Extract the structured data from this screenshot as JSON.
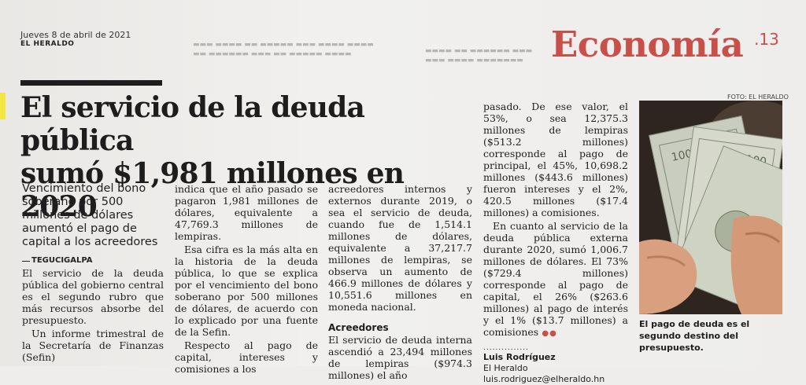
{
  "masthead": {
    "date": "Jueves 8 de abril de 2021",
    "newspaper": "EL HERALDO",
    "section": "Economía",
    "page_number": ".13"
  },
  "article": {
    "headline_line1": "El servicio de la deuda pública",
    "headline_line2": "sumó $1,981 millones en 2020",
    "subhead": "Vencimiento del bono soberano por 500 millones de dólares aumentó el pago de capital a los acreedores",
    "dateline": "TEGUCIGALPA",
    "col1": [
      "El servicio de la deuda pública del gobierno central es el segundo rubro que más recursos absorbe del presupuesto.",
      "Un informe trimestral de la Secretaría de Finanzas (Sefin)"
    ],
    "col2": [
      "indica que el año pasado se pagaron 1,981 millones de dólares, equivalente a 47,769.3 millones de lempiras.",
      "Esa cifra es la más alta en la historia de la deuda pública, lo que se explica por el vencimiento del bono soberano por 500 millones de dólares, de acuerdo con lo explicado por una fuente de la Sefin.",
      "Respecto al pago de capital, intereses y comisiones a los"
    ],
    "col3": [
      "acreedores internos y externos durante 2019, o sea el servicio de deuda, cuando fue de 1,514.1 millones de dólares, equivalente a 37,217.7 millones de lempiras, se observa un aumento de 466.9 millones de dólares y 10,551.6 millones en moneda nacional."
    ],
    "col3_subtitle": "Acreedores",
    "col3_after": [
      "El servicio de deuda interna ascendió a 23,494 millones de lempiras ($974.3 millones) el año"
    ],
    "col4": [
      "pasado. De ese valor, el 53%, o sea 12,375.3 millones de lempiras ($513.2 millones) corresponde al pago de principal, el 45%, 10,698.2 millones ($443.6 millones) fueron intereses y el 2%, 420.5 millones ($17.4 millones) a comisiones.",
      "En cuanto al servicio de la deuda pública externa durante 2020, sumó 1,006.7 millones de dólares. El 73% ($729.4 millones) corresponde al pago de capital, el 26% ($263.6 millones) al pago de interés y el 1% ($13.7 millones) a comisiones"
    ],
    "byline_sep": "...............",
    "author": "Luis Rodríguez",
    "outlet": "El Heraldo",
    "email": "luis.rodriguez@elheraldo.hn"
  },
  "photo": {
    "credit": "FOTO: EL HERALDO",
    "caption": "El pago de deuda es el segundo destino del presupuesto."
  }
}
